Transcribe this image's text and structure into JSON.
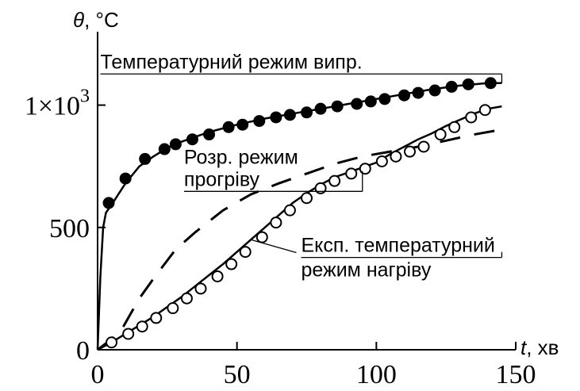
{
  "chart_data": {
    "type": "line",
    "title": "",
    "xlabel": {
      "symbol": "t",
      "unit": ", хв"
    },
    "ylabel": {
      "symbol": "θ",
      "unit": ", °C"
    },
    "xlim": [
      0,
      150
    ],
    "ylim": [
      0,
      1300
    ],
    "x_ticks": [
      {
        "value": 0,
        "label": "0"
      },
      {
        "value": 50,
        "label": "50"
      },
      {
        "value": 100,
        "label": "100"
      },
      {
        "value": 150,
        "label": "150"
      }
    ],
    "y_ticks": [
      {
        "value": 0,
        "label": "0"
      },
      {
        "value": 500,
        "label": "500"
      },
      {
        "value": 1000,
        "label": "1×10",
        "sup": "3"
      }
    ],
    "grid": false,
    "legend": "none",
    "series": [
      {
        "style": "solid-filled-circles",
        "color": "#000000",
        "line": [
          [
            0,
            0
          ],
          [
            1,
            300
          ],
          [
            2,
            500
          ],
          [
            3,
            560
          ],
          [
            6,
            610
          ],
          [
            10,
            680
          ],
          [
            15,
            750
          ],
          [
            20,
            790
          ],
          [
            25,
            825
          ],
          [
            30,
            850
          ],
          [
            40,
            890
          ],
          [
            50,
            920
          ],
          [
            60,
            945
          ],
          [
            70,
            965
          ],
          [
            80,
            985
          ],
          [
            90,
            1005
          ],
          [
            100,
            1025
          ],
          [
            110,
            1045
          ],
          [
            120,
            1065
          ],
          [
            130,
            1080
          ],
          [
            140,
            1090
          ],
          [
            145,
            1090
          ]
        ],
        "markers": [
          [
            4,
            600
          ],
          [
            10,
            700
          ],
          [
            17,
            780
          ],
          [
            24,
            820
          ],
          [
            28,
            840
          ],
          [
            34,
            860
          ],
          [
            40,
            880
          ],
          [
            47,
            910
          ],
          [
            52,
            920
          ],
          [
            58,
            935
          ],
          [
            64,
            950
          ],
          [
            69,
            960
          ],
          [
            75,
            970
          ],
          [
            80,
            985
          ],
          [
            86,
            995
          ],
          [
            93,
            1005
          ],
          [
            98,
            1015
          ],
          [
            103,
            1025
          ],
          [
            110,
            1040
          ],
          [
            115,
            1050
          ],
          [
            121,
            1060
          ],
          [
            127,
            1075
          ],
          [
            133,
            1085
          ],
          [
            141,
            1090
          ]
        ]
      },
      {
        "style": "dashed",
        "color": "#000000",
        "points": [
          [
            0,
            0
          ],
          [
            8,
            70
          ],
          [
            15,
            210
          ],
          [
            20,
            290
          ],
          [
            28,
            410
          ],
          [
            35,
            480
          ],
          [
            45,
            570
          ],
          [
            55,
            635
          ],
          [
            65,
            680
          ],
          [
            75,
            720
          ],
          [
            85,
            760
          ],
          [
            95,
            790
          ],
          [
            105,
            810
          ],
          [
            115,
            830
          ],
          [
            125,
            855
          ],
          [
            135,
            880
          ],
          [
            145,
            900
          ]
        ]
      },
      {
        "style": "solid-open-circles",
        "color": "#000000",
        "line": [
          [
            0,
            0
          ],
          [
            5,
            30
          ],
          [
            10,
            65
          ],
          [
            15,
            100
          ],
          [
            20,
            135
          ],
          [
            25,
            175
          ],
          [
            30,
            215
          ],
          [
            35,
            260
          ],
          [
            40,
            305
          ],
          [
            45,
            350
          ],
          [
            50,
            400
          ],
          [
            55,
            450
          ],
          [
            60,
            500
          ],
          [
            65,
            550
          ],
          [
            70,
            600
          ],
          [
            75,
            640
          ],
          [
            80,
            675
          ],
          [
            85,
            705
          ],
          [
            90,
            725
          ],
          [
            95,
            745
          ],
          [
            100,
            765
          ],
          [
            105,
            800
          ],
          [
            110,
            830
          ],
          [
            115,
            860
          ],
          [
            120,
            885
          ],
          [
            125,
            915
          ],
          [
            130,
            940
          ],
          [
            135,
            965
          ],
          [
            140,
            985
          ],
          [
            145,
            995
          ]
        ],
        "markers": [
          [
            5,
            30
          ],
          [
            11,
            65
          ],
          [
            16,
            95
          ],
          [
            21,
            130
          ],
          [
            27,
            170
          ],
          [
            32,
            210
          ],
          [
            37,
            250
          ],
          [
            43,
            300
          ],
          [
            48,
            350
          ],
          [
            53,
            400
          ],
          [
            59,
            460
          ],
          [
            64,
            520
          ],
          [
            69,
            570
          ],
          [
            75,
            620
          ],
          [
            80,
            660
          ],
          [
            85,
            690
          ],
          [
            91,
            720
          ],
          [
            96,
            740
          ],
          [
            102,
            770
          ],
          [
            107,
            790
          ],
          [
            112,
            810
          ],
          [
            117,
            830
          ],
          [
            123,
            880
          ],
          [
            128,
            910
          ],
          [
            134,
            950
          ],
          [
            139,
            980
          ]
        ]
      }
    ],
    "annotations": [
      {
        "text": "Температурний режим випр.",
        "x": 1,
        "y": 1150,
        "leader_to": [
          145,
          1090
        ]
      },
      {
        "text": "Розр. режим",
        "x": 31,
        "y": 760
      },
      {
        "text": "прогріву",
        "x": 31,
        "y": 670,
        "leader_to": [
          95,
          730
        ]
      },
      {
        "text": "Експ. температурний",
        "x": 73,
        "y": 400,
        "leader_to": [
          145,
          400
        ]
      },
      {
        "text": "режим нагріву",
        "x": 73,
        "y": 300,
        "leader_from": [
          55,
          450
        ]
      }
    ]
  }
}
